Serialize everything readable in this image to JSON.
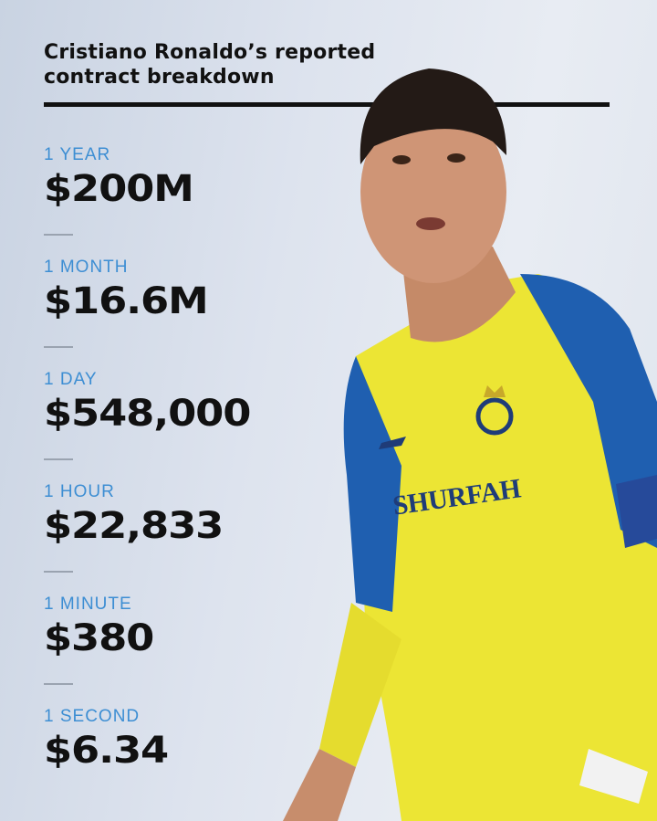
{
  "header": {
    "title_line1": "Cristiano Ronaldo’s reported",
    "title_line2": "contract breakdown"
  },
  "breakdown": [
    {
      "label": "1 YEAR",
      "value": "$200M"
    },
    {
      "label": "1 MONTH",
      "value": "$16.6M"
    },
    {
      "label": "1 DAY",
      "value": "$548,000"
    },
    {
      "label": "1 HOUR",
      "value": "$22,833"
    },
    {
      "label": "1 MINUTE",
      "value": "$380"
    },
    {
      "label": "1 SECOND",
      "value": "$6.34"
    }
  ],
  "photo": {
    "jersey_sponsor": "SHURFAH"
  },
  "colors": {
    "label_blue": "#3d8ed3",
    "jersey_yellow": "#ece534",
    "jersey_blue": "#1f5fb0",
    "text": "#111111"
  }
}
